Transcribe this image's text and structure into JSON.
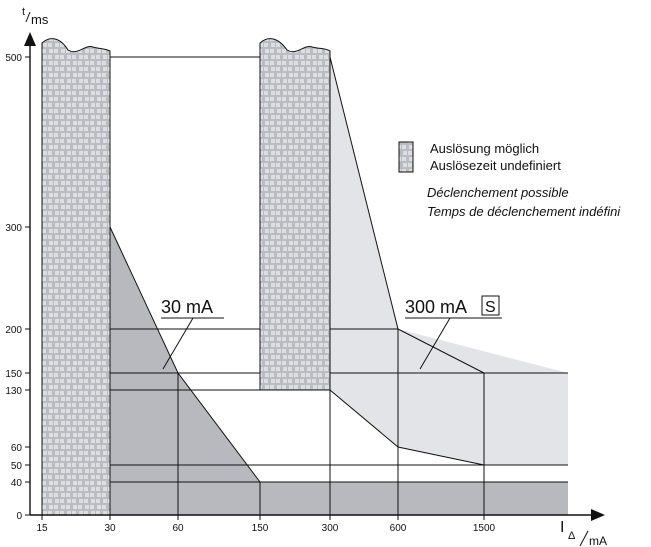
{
  "colors": {
    "axis": "#111111",
    "band_fill": "#b5b8be",
    "rcd30_fill": "#b7b9bf",
    "rcd300_fill": "#e3e4e8",
    "line": "#111111"
  },
  "chart_data": {
    "type": "area",
    "y_axis": {
      "label_top": "t",
      "label_bottom": "ms",
      "ticks": [
        "0",
        "40",
        "50",
        "60",
        "130",
        "150",
        "200",
        "300",
        "500"
      ]
    },
    "x_axis": {
      "label_main": "I",
      "label_sub": "Δ",
      "label_unit": "mA",
      "ticks": [
        "15",
        "30",
        "60",
        "150",
        "300",
        "600",
        "1500"
      ]
    },
    "legend": {
      "de_line1": "Auslösung möglich",
      "de_line2": "Auslösezeit undefiniert",
      "fr_line1": "Déclenchement possible",
      "fr_line2": "Temps de déclenchement indéfini"
    },
    "series": [
      {
        "name": "30 mA",
        "label": "30 mA",
        "upper_x": [
          "30",
          "60",
          "150"
        ],
        "upper_y": [
          300,
          150,
          40
        ],
        "lower_y": 40
      },
      {
        "name": "300 mA",
        "label": "300 mA",
        "badge": "S",
        "upper_x": [
          "300",
          "600",
          "1500"
        ],
        "upper_y": [
          500,
          200,
          150
        ],
        "lower_x": [
          "300",
          "600",
          "1500"
        ],
        "lower_y": [
          130,
          60,
          50
        ]
      }
    ],
    "undefined_bands": [
      {
        "x_from": "15",
        "x_to": "30",
        "y_from": 0,
        "y_to": 500
      },
      {
        "x_from": "150",
        "x_to": "300",
        "y_from": 130,
        "y_to": 500
      }
    ]
  }
}
